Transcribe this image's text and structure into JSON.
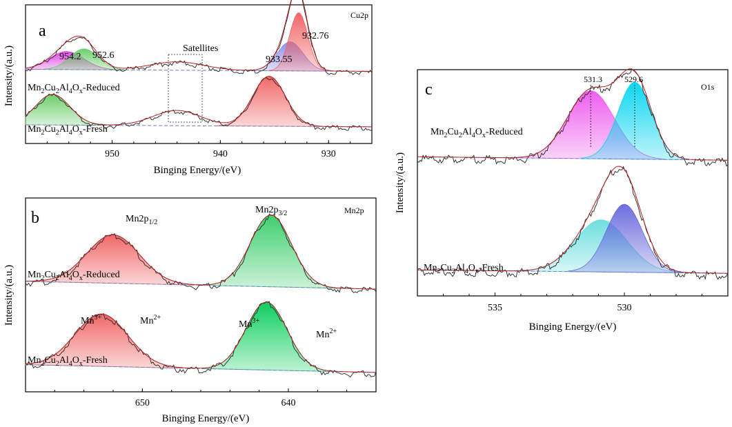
{
  "chart_data": [
    {
      "id": "a",
      "type": "line",
      "panel_label": "a",
      "title": "Cu2p",
      "xlabel": "Binging Energy/(eV)",
      "ylabel": "Intensity/(a.u.)",
      "xlim": [
        958,
        926
      ],
      "x_ticks": [
        950,
        940,
        930
      ],
      "ylim": [
        0,
        1
      ],
      "reversed_x": true,
      "series": [
        {
          "name": "Mn2Cu2Al4Ox-Reduced",
          "label_main": "Mn",
          "subs": [
            "2",
            "2",
            "4",
            "x"
          ],
          "label_parts": [
            "Mn",
            "Cu",
            "Al",
            "O"
          ],
          "suffix": "-Reduced",
          "offset": 0.52,
          "peaks": [
            {
              "center": 954.2,
              "height": 0.13,
              "width": 1.6,
              "color": "#e040e0"
            },
            {
              "center": 952.6,
              "height": 0.15,
              "width": 1.3,
              "color": "#66cc66"
            },
            {
              "center": 933.55,
              "height": 0.21,
              "width": 1.2,
              "color": "#8888e8"
            },
            {
              "center": 932.76,
              "height": 0.42,
              "width": 0.85,
              "color": "#f06060"
            }
          ],
          "extra": [
            {
              "center": 944.0,
              "height": 0.06,
              "width": 2.5
            }
          ]
        },
        {
          "name": "Mn2Cu2Al4Ox-Fresh",
          "label_main": "Mn",
          "subs": [
            "2",
            "2",
            "4",
            "x"
          ],
          "label_parts": [
            "Mn",
            "Cu",
            "Al",
            "O"
          ],
          "suffix": "-Fresh",
          "offset": 0.12,
          "peaks": [
            {
              "center": 955.5,
              "height": 0.22,
              "width": 1.6,
              "color": "#66cc66"
            },
            {
              "center": 935.5,
              "height": 0.36,
              "width": 1.5,
              "color": "#f06060"
            }
          ],
          "extra": [
            {
              "center": 944.0,
              "height": 0.11,
              "width": 2.2
            }
          ]
        }
      ],
      "annotations": [
        "954.2",
        "952.6",
        "933.55",
        "932.76",
        "Satellites"
      ]
    },
    {
      "id": "b",
      "type": "line",
      "panel_label": "b",
      "title": "Mn2p",
      "xlabel": "Binging Energy/(eV)",
      "ylabel": "Intensity/(a.u.)",
      "xlim": [
        658,
        634
      ],
      "x_ticks": [
        650,
        640
      ],
      "ylim": [
        0,
        1
      ],
      "reversed_x": true,
      "series": [
        {
          "name": "Mn2Cu2Al4Ox-Reduced",
          "label_main": "Mn",
          "subs": [
            "2",
            "2",
            "4",
            "x"
          ],
          "label_parts": [
            "Mn",
            "Cu",
            "Al",
            "O"
          ],
          "suffix": "-Reduced",
          "offset": 0.53,
          "peaks": [
            {
              "center": 652.0,
              "height": 0.25,
              "width": 1.8,
              "color": "#f06060"
            },
            {
              "center": 641.2,
              "height": 0.37,
              "width": 1.4,
              "color": "#33cc66"
            }
          ]
        },
        {
          "name": "Mn2Cu2Al4Ox-Fresh",
          "label_main": "Mn",
          "subs": [
            "2",
            "2",
            "4",
            "x"
          ],
          "label_parts": [
            "Mn",
            "Cu",
            "Al",
            "O"
          ],
          "suffix": "-Fresh",
          "offset": 0.1,
          "peaks": [
            {
              "center": 652.8,
              "height": 0.27,
              "width": 1.8,
              "color": "#f06060"
            },
            {
              "center": 641.5,
              "height": 0.35,
              "width": 1.4,
              "color": "#00cc55"
            }
          ]
        }
      ],
      "annotations": [
        "Mn2p1/2",
        "Mn2p3/2",
        "Mn3+",
        "Mn2+",
        "Mn3+",
        "Mn2+"
      ]
    },
    {
      "id": "c",
      "type": "line",
      "panel_label": "c",
      "title": "O1s",
      "xlabel": "Binging Energy/(eV)",
      "ylabel": "Intensity/(a.u.)",
      "xlim": [
        538,
        526
      ],
      "x_ticks": [
        535,
        530
      ],
      "ylim": [
        0,
        1
      ],
      "reversed_x": true,
      "series": [
        {
          "name": "Mn2Cu2Al4Ox-Reduced",
          "label_main": "Mn",
          "subs": [
            "2",
            "2",
            "4",
            "x"
          ],
          "label_parts": [
            "Mn",
            "Cu",
            "Al",
            "O"
          ],
          "suffix": "-Reduced",
          "offset": 0.6,
          "peaks": [
            {
              "center": 531.3,
              "height": 0.3,
              "width": 0.9,
              "color": "#ee55ee"
            },
            {
              "center": 529.6,
              "height": 0.34,
              "width": 0.65,
              "color": "#00d4ee"
            }
          ]
        },
        {
          "name": "Mn2Cu2Al4Ox-Fresh",
          "label_main": "Mn",
          "subs": [
            "2",
            "2",
            "4",
            "x"
          ],
          "label_parts": [
            "Mn",
            "Cu",
            "Al",
            "O"
          ],
          "suffix": "-Fresh",
          "offset": 0.1,
          "peaks": [
            {
              "center": 530.9,
              "height": 0.23,
              "width": 1.0,
              "color": "#66dddd"
            },
            {
              "center": 530.0,
              "height": 0.3,
              "width": 0.7,
              "color": "#6666dd"
            }
          ]
        }
      ],
      "annotations": [
        "531.3",
        "529.6"
      ]
    }
  ],
  "labels": {
    "a": {
      "p1": "954.2",
      "p2": "952.6",
      "p3": "933.55",
      "p4": "932.76",
      "sat": "Satellites"
    },
    "b": {
      "p12_main": "Mn2p",
      "p12_sub": "1/2",
      "p32_main": "Mn2p",
      "p32_sub": "3/2",
      "mn": "Mn",
      "plus3": "3+",
      "plus2": "2+"
    },
    "c": {
      "p1": "531.3",
      "p2": "529.6"
    }
  }
}
